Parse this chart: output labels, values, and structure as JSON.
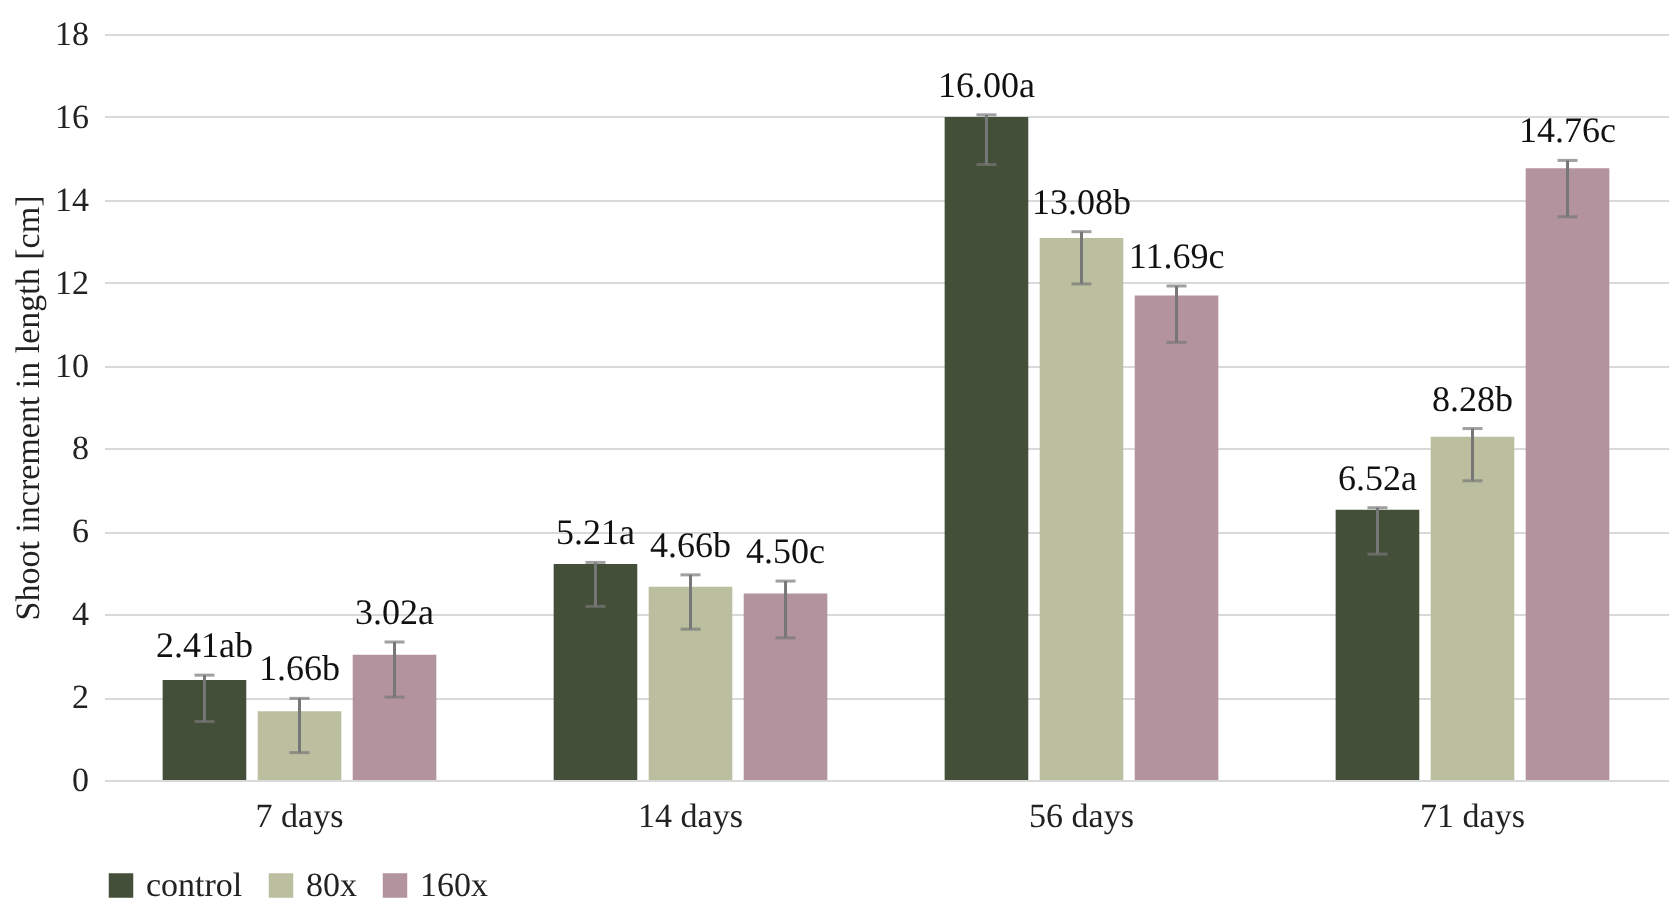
{
  "chart_data": {
    "type": "bar",
    "ylabel": "Shoot increment in length [cm]",
    "categories": [
      "7 days",
      "14 days",
      "56 days",
      "71 days"
    ],
    "series": [
      {
        "name": "control",
        "color": "#434f38",
        "values": [
          2.41,
          5.21,
          16.0,
          6.52
        ],
        "value_labels": [
          "2.41ab",
          "5.21a",
          "16.00a",
          "6.52a"
        ],
        "errors": [
          [
            1.41,
            2.53
          ],
          [
            4.19,
            5.25
          ],
          [
            14.85,
            16.05
          ],
          [
            5.45,
            6.57
          ]
        ]
      },
      {
        "name": "80x",
        "color": "#bbbf9f",
        "values": [
          1.66,
          4.66,
          13.08,
          8.28
        ],
        "value_labels": [
          "1.66b",
          "4.66b",
          "13.08b",
          "8.28b"
        ],
        "errors": [
          [
            0.66,
            1.97
          ],
          [
            3.64,
            4.95
          ],
          [
            11.97,
            13.23
          ],
          [
            7.22,
            8.48
          ]
        ]
      },
      {
        "name": "160x",
        "color": "#b3939d",
        "values": [
          3.02,
          4.5,
          11.69,
          14.76
        ],
        "value_labels": [
          "3.02a",
          "4.50c",
          "11.69c",
          "14.76c"
        ],
        "errors": [
          [
            2.0,
            3.33
          ],
          [
            3.43,
            4.8
          ],
          [
            10.56,
            11.92
          ],
          [
            13.59,
            14.95
          ]
        ]
      }
    ],
    "ylim": [
      0,
      18
    ],
    "yticks": [
      0,
      2,
      4,
      6,
      8,
      10,
      12,
      14,
      16,
      18
    ],
    "grid": "y",
    "legend": "bottom"
  }
}
